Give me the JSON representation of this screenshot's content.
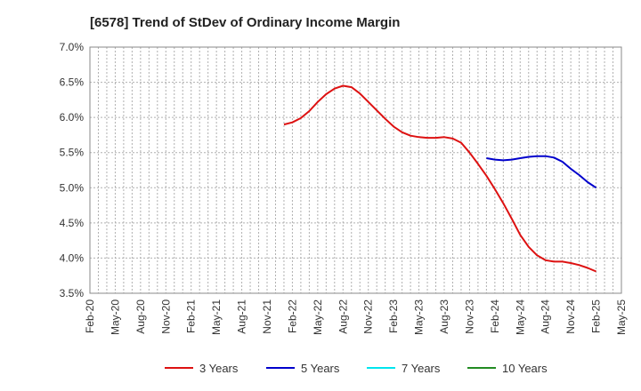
{
  "chart_data": {
    "type": "line",
    "title": "[6578]  Trend of StDev of Ordinary Income Margin",
    "xlabel": "",
    "ylabel": "",
    "ylim": [
      3.5,
      7.0
    ],
    "y_ticks": [
      "3.5%",
      "4.0%",
      "4.5%",
      "5.0%",
      "5.5%",
      "6.0%",
      "6.5%",
      "7.0%"
    ],
    "y_tick_values": [
      3.5,
      4.0,
      4.5,
      5.0,
      5.5,
      6.0,
      6.5,
      7.0
    ],
    "x_ticks": [
      "Feb-20",
      "May-20",
      "Aug-20",
      "Nov-20",
      "Feb-21",
      "May-21",
      "Aug-21",
      "Nov-21",
      "Feb-22",
      "May-22",
      "Aug-22",
      "Nov-22",
      "Feb-23",
      "May-23",
      "Aug-23",
      "Nov-23",
      "Feb-24",
      "May-24",
      "Aug-24",
      "Nov-24",
      "Feb-25",
      "May-25"
    ],
    "grid": true,
    "legend_position": "bottom",
    "series": [
      {
        "name": "3 Years",
        "color": "#dd1111",
        "points": [
          [
            "Jan-22",
            5.9
          ],
          [
            "Feb-22",
            5.93
          ],
          [
            "Mar-22",
            5.99
          ],
          [
            "Apr-22",
            6.09
          ],
          [
            "May-22",
            6.22
          ],
          [
            "Jun-22",
            6.33
          ],
          [
            "Jul-22",
            6.41
          ],
          [
            "Aug-22",
            6.45
          ],
          [
            "Sep-22",
            6.43
          ],
          [
            "Oct-22",
            6.34
          ],
          [
            "Nov-22",
            6.22
          ],
          [
            "Dec-22",
            6.1
          ],
          [
            "Jan-23",
            5.98
          ],
          [
            "Feb-23",
            5.87
          ],
          [
            "Mar-23",
            5.79
          ],
          [
            "Apr-23",
            5.74
          ],
          [
            "May-23",
            5.72
          ],
          [
            "Jun-23",
            5.71
          ],
          [
            "Jul-23",
            5.71
          ],
          [
            "Aug-23",
            5.72
          ],
          [
            "Sep-23",
            5.7
          ],
          [
            "Oct-23",
            5.64
          ],
          [
            "Nov-23",
            5.5
          ],
          [
            "Dec-23",
            5.34
          ],
          [
            "Jan-24",
            5.17
          ],
          [
            "Feb-24",
            4.98
          ],
          [
            "Mar-24",
            4.78
          ],
          [
            "Apr-24",
            4.56
          ],
          [
            "May-24",
            4.33
          ],
          [
            "Jun-24",
            4.16
          ],
          [
            "Jul-24",
            4.04
          ],
          [
            "Aug-24",
            3.97
          ],
          [
            "Sep-24",
            3.95
          ],
          [
            "Oct-24",
            3.95
          ],
          [
            "Nov-24",
            3.93
          ],
          [
            "Dec-24",
            3.9
          ],
          [
            "Jan-25",
            3.86
          ],
          [
            "Feb-25",
            3.81
          ]
        ]
      },
      {
        "name": "5 Years",
        "color": "#0000cc",
        "points": [
          [
            "Jan-24",
            5.42
          ],
          [
            "Feb-24",
            5.4
          ],
          [
            "Mar-24",
            5.39
          ],
          [
            "Apr-24",
            5.4
          ],
          [
            "May-24",
            5.42
          ],
          [
            "Jun-24",
            5.44
          ],
          [
            "Jul-24",
            5.45
          ],
          [
            "Aug-24",
            5.45
          ],
          [
            "Sep-24",
            5.43
          ],
          [
            "Oct-24",
            5.37
          ],
          [
            "Nov-24",
            5.27
          ],
          [
            "Dec-24",
            5.18
          ],
          [
            "Jan-25",
            5.08
          ],
          [
            "Feb-25",
            5.0
          ]
        ]
      },
      {
        "name": "7 Years",
        "color": "#00e5ee",
        "points": []
      },
      {
        "name": "10 Years",
        "color": "#228b22",
        "points": []
      }
    ]
  }
}
